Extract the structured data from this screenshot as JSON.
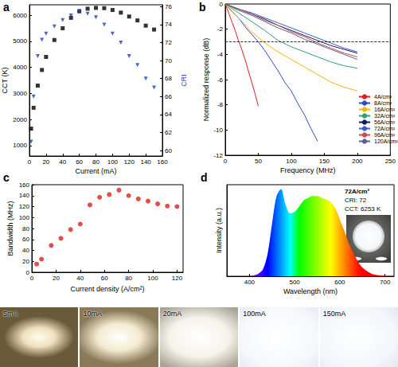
{
  "chart_data": [
    {
      "label": "a",
      "type": "scatter",
      "x_label": "Current (mA)",
      "y_label": "CCT (K)",
      "y2_label": "CRI",
      "x": [
        2,
        5,
        10,
        15,
        20,
        30,
        40,
        50,
        60,
        70,
        80,
        90,
        100,
        110,
        120,
        130,
        140,
        150
      ],
      "series": [
        {
          "color": "#000000",
          "marker": "square",
          "values": [
            1650,
            2450,
            3300,
            3900,
            4400,
            5050,
            5500,
            5900,
            6150,
            6250,
            6280,
            6270,
            6200,
            6100,
            5950,
            5800,
            5600,
            5450
          ]
        },
        {
          "color": "#1f3fbf",
          "marker": "triangle-down",
          "axis": "y2",
          "values": [
            61,
            66,
            70.5,
            72.3,
            73,
            73.8,
            74.5,
            75,
            75.5,
            75.2,
            74.8,
            74,
            73,
            72,
            70.5,
            69.5,
            68,
            67
          ]
        }
      ],
      "xlim": [
        0,
        160
      ],
      "xticks": [
        0,
        20,
        40,
        60,
        80,
        100,
        120,
        140,
        160
      ],
      "ylim": [
        600,
        6400
      ],
      "yticks": [
        1000,
        2000,
        3000,
        4000,
        5000,
        6000
      ],
      "y2lim": [
        59.4,
        76.2
      ],
      "y2ticks": [
        60,
        62,
        64,
        66,
        68,
        70,
        72,
        74,
        76
      ]
    },
    {
      "label": "b",
      "type": "line",
      "x_label": "Frequency (MHz)",
      "y_label": "Normalized response (dB)",
      "xlim": [
        0,
        250
      ],
      "xticks": [
        0,
        50,
        100,
        150,
        200,
        250
      ],
      "ylim": [
        -12,
        0
      ],
      "yticks": [
        -12,
        -10,
        -8,
        -6,
        -4,
        -2,
        0
      ],
      "legend": "lower right",
      "reference_line": {
        "y": -3,
        "line_style": "dashed"
      },
      "series": [
        {
          "name": "4A/cm²",
          "color": "#e41a1c",
          "x": [
            0,
            5,
            10,
            15,
            20,
            25,
            30,
            35,
            40,
            45,
            50
          ],
          "values": [
            0,
            -0.7,
            -1.4,
            -2.1,
            -2.9,
            -3.6,
            -4.4,
            -5.3,
            -6.2,
            -7.1,
            -8.1
          ]
        },
        {
          "name": "8A/cm²",
          "color": "#2b4cc4",
          "x": [
            0,
            10,
            20,
            30,
            40,
            50,
            60,
            70,
            80,
            90,
            100,
            110,
            120,
            130,
            140
          ],
          "values": [
            0,
            -0.6,
            -1.1,
            -1.8,
            -2.4,
            -3.0,
            -3.7,
            -4.5,
            -5.3,
            -6.2,
            -6.9,
            -7.9,
            -8.8,
            -9.9,
            -10.9
          ]
        },
        {
          "name": "16A/cm²",
          "color": "#f2b705",
          "x": [
            0,
            20,
            40,
            60,
            80,
            100,
            120,
            140,
            160,
            180,
            200
          ],
          "values": [
            0,
            -1.1,
            -2.2,
            -3.1,
            -3.8,
            -4.4,
            -5.0,
            -5.6,
            -6.2,
            -6.6,
            -6.9
          ]
        },
        {
          "name": "32A/cm²",
          "color": "#2ca07a",
          "x": [
            0,
            20,
            40,
            60,
            80,
            100,
            120,
            140,
            160,
            180,
            200
          ],
          "values": [
            0,
            -0.7,
            -1.4,
            -2.1,
            -2.9,
            -3.4,
            -3.8,
            -4.2,
            -4.6,
            -4.9,
            -5.1
          ]
        },
        {
          "name": "56A/cm²",
          "color": "#1a1a5a",
          "x": [
            0,
            20,
            40,
            60,
            80,
            100,
            120,
            140,
            160,
            180,
            200
          ],
          "values": [
            0,
            -0.4,
            -0.8,
            -1.2,
            -1.7,
            -2.1,
            -2.5,
            -2.9,
            -3.3,
            -3.6,
            -3.9
          ]
        },
        {
          "name": "72A/cm²",
          "color": "#3a5fcd",
          "x": [
            0,
            20,
            40,
            60,
            80,
            100,
            120,
            140,
            160,
            180,
            200
          ],
          "values": [
            0,
            -0.4,
            -0.7,
            -1.1,
            -1.5,
            -1.9,
            -2.3,
            -2.7,
            -3.1,
            -3.5,
            -3.8
          ]
        },
        {
          "name": "96A/cm²",
          "color": "#c0504d",
          "x": [
            0,
            20,
            40,
            60,
            80,
            100,
            120,
            140,
            160,
            180,
            200
          ],
          "values": [
            0,
            -0.4,
            -0.8,
            -1.3,
            -1.7,
            -2.2,
            -2.6,
            -3.1,
            -3.5,
            -3.9,
            -4.2
          ]
        },
        {
          "name": "120A/cm²",
          "color": "#5f5f8f",
          "x": [
            0,
            20,
            40,
            60,
            80,
            100,
            120,
            140,
            160,
            180,
            200
          ],
          "values": [
            0,
            -0.5,
            -0.9,
            -1.4,
            -1.9,
            -2.3,
            -2.8,
            -3.2,
            -3.6,
            -4.0,
            -4.4
          ]
        }
      ]
    },
    {
      "label": "c",
      "type": "scatter",
      "x_label": "Current density (A/cm²)",
      "y_label": "Bandwidth (MHz)",
      "x": [
        4,
        8,
        16,
        24,
        32,
        40,
        48,
        56,
        64,
        72,
        80,
        88,
        96,
        104,
        112,
        120
      ],
      "values": [
        15,
        24,
        49,
        62,
        78,
        88,
        123,
        137,
        142,
        150,
        140,
        134,
        130,
        125,
        121,
        120
      ],
      "color": "#e0201b",
      "marker": "circle",
      "xlim": [
        0,
        125
      ],
      "xticks": [
        0,
        20,
        40,
        60,
        80,
        100,
        120
      ],
      "ylim": [
        0,
        160
      ],
      "yticks": [
        0,
        20,
        40,
        60,
        80,
        100,
        120,
        140,
        160
      ]
    },
    {
      "label": "d",
      "type": "area",
      "x_label": "Wavelength (nm)",
      "y_label": "Intensity (a.u.)",
      "tick_labels": "x",
      "color": "spectrum",
      "annotations": [
        "72A/cm²",
        "CRI: 72",
        "CCT: 6253 K"
      ],
      "x": [
        400,
        410,
        420,
        430,
        440,
        450,
        460,
        470,
        480,
        490,
        500,
        510,
        520,
        530,
        540,
        550,
        560,
        570,
        580,
        590,
        600,
        610,
        620,
        630,
        640,
        650,
        660,
        670,
        680,
        690,
        700,
        720
      ],
      "values": [
        0,
        0.01,
        0.03,
        0.08,
        0.25,
        0.6,
        0.92,
        1.0,
        0.82,
        0.72,
        0.74,
        0.8,
        0.87,
        0.9,
        0.92,
        0.92,
        0.9,
        0.88,
        0.85,
        0.78,
        0.65,
        0.52,
        0.38,
        0.27,
        0.17,
        0.1,
        0.06,
        0.03,
        0.015,
        0.008,
        0.004,
        0
      ],
      "xlim": [
        350,
        720
      ],
      "xticks": [
        400,
        500,
        600,
        700
      ],
      "ylim": [
        0,
        1.05
      ]
    }
  ],
  "photos": {
    "labels": [
      "5mA",
      "10mA",
      "20mA",
      "100mA",
      "150mA"
    ]
  }
}
